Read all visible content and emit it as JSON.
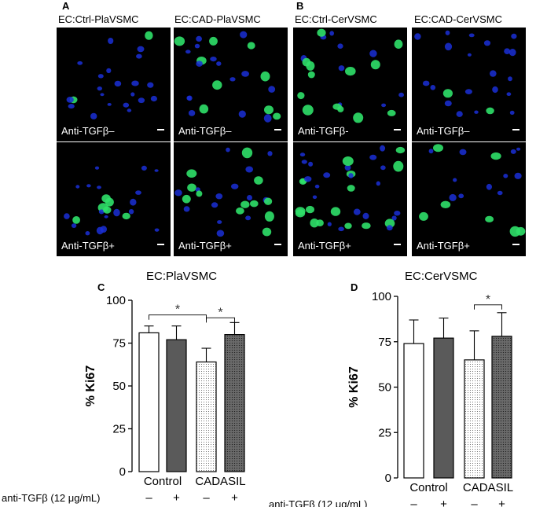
{
  "panels": {
    "A": "A",
    "B": "B",
    "C": "C",
    "D": "D"
  },
  "micrographs": {
    "titles": [
      "EC:Ctrl-PlaVSMC",
      "EC:CAD-PlaVSMC",
      "EC:Ctrl-CerVSMC",
      "EC:CAD-CerVSMC"
    ],
    "labels": {
      "a_top_left": "Anti-TGFβ–",
      "a_top_right": "Anti-TGFβ–",
      "a_bottom_left": "Anti-TGFβ+",
      "a_bottom_right": "Anti-TGFβ+",
      "b_top_left": "Anti-TGFβ-",
      "b_top_right": "Anti-TGFβ–",
      "b_bottom_left": "Anti-TGFβ+",
      "b_bottom_right": "Anti-TGFβ+"
    },
    "colors": {
      "nuclei": "#1a2fd6",
      "ki67": "#2fe06a",
      "background": "#000000"
    }
  },
  "chart_data": [
    {
      "type": "bar",
      "title": "EC:PlaVSMC",
      "ylabel": "% Ki67",
      "ylim": [
        0,
        100
      ],
      "yticks": [
        "0",
        "25",
        "50",
        "75",
        "100"
      ],
      "group_labels": [
        "Control",
        "CADASIL"
      ],
      "treatment_label": "anti-TGFβ (12 μg/mL)",
      "treatment_signs": [
        "–",
        "+",
        "–",
        "+"
      ],
      "bars": [
        {
          "group": "Control",
          "anti_tgfb": "–",
          "value": 81,
          "error": 4,
          "fill": "white"
        },
        {
          "group": "Control",
          "anti_tgfb": "+",
          "value": 77,
          "error": 8,
          "fill": "dark-gray"
        },
        {
          "group": "CADASIL",
          "anti_tgfb": "–",
          "value": 64,
          "error": 8,
          "fill": "light-dotted"
        },
        {
          "group": "CADASIL",
          "anti_tgfb": "+",
          "value": 80,
          "error": 7,
          "fill": "dark-dotted"
        }
      ],
      "significance": [
        {
          "from": 0,
          "to": 2,
          "label": "*"
        },
        {
          "from": 2,
          "to": 3,
          "label": "*"
        }
      ]
    },
    {
      "type": "bar",
      "title": "EC:CerVSMC",
      "ylabel": "% Ki67",
      "ylim": [
        0,
        100
      ],
      "yticks": [
        "0",
        "25",
        "50",
        "75",
        "100"
      ],
      "group_labels": [
        "Control",
        "CADASIL"
      ],
      "treatment_label": "anti-TGFβ (12 μg/mL)",
      "treatment_signs": [
        "–",
        "+",
        "–",
        "+"
      ],
      "bars": [
        {
          "group": "Control",
          "anti_tgfb": "–",
          "value": 74,
          "error": 13,
          "fill": "white"
        },
        {
          "group": "Control",
          "anti_tgfb": "+",
          "value": 77,
          "error": 11,
          "fill": "dark-gray"
        },
        {
          "group": "CADASIL",
          "anti_tgfb": "–",
          "value": 65,
          "error": 16,
          "fill": "light-dotted"
        },
        {
          "group": "CADASIL",
          "anti_tgfb": "+",
          "value": 78,
          "error": 13,
          "fill": "dark-dotted"
        }
      ],
      "significance": [
        {
          "from": 2,
          "to": 3,
          "label": "*"
        }
      ]
    }
  ]
}
